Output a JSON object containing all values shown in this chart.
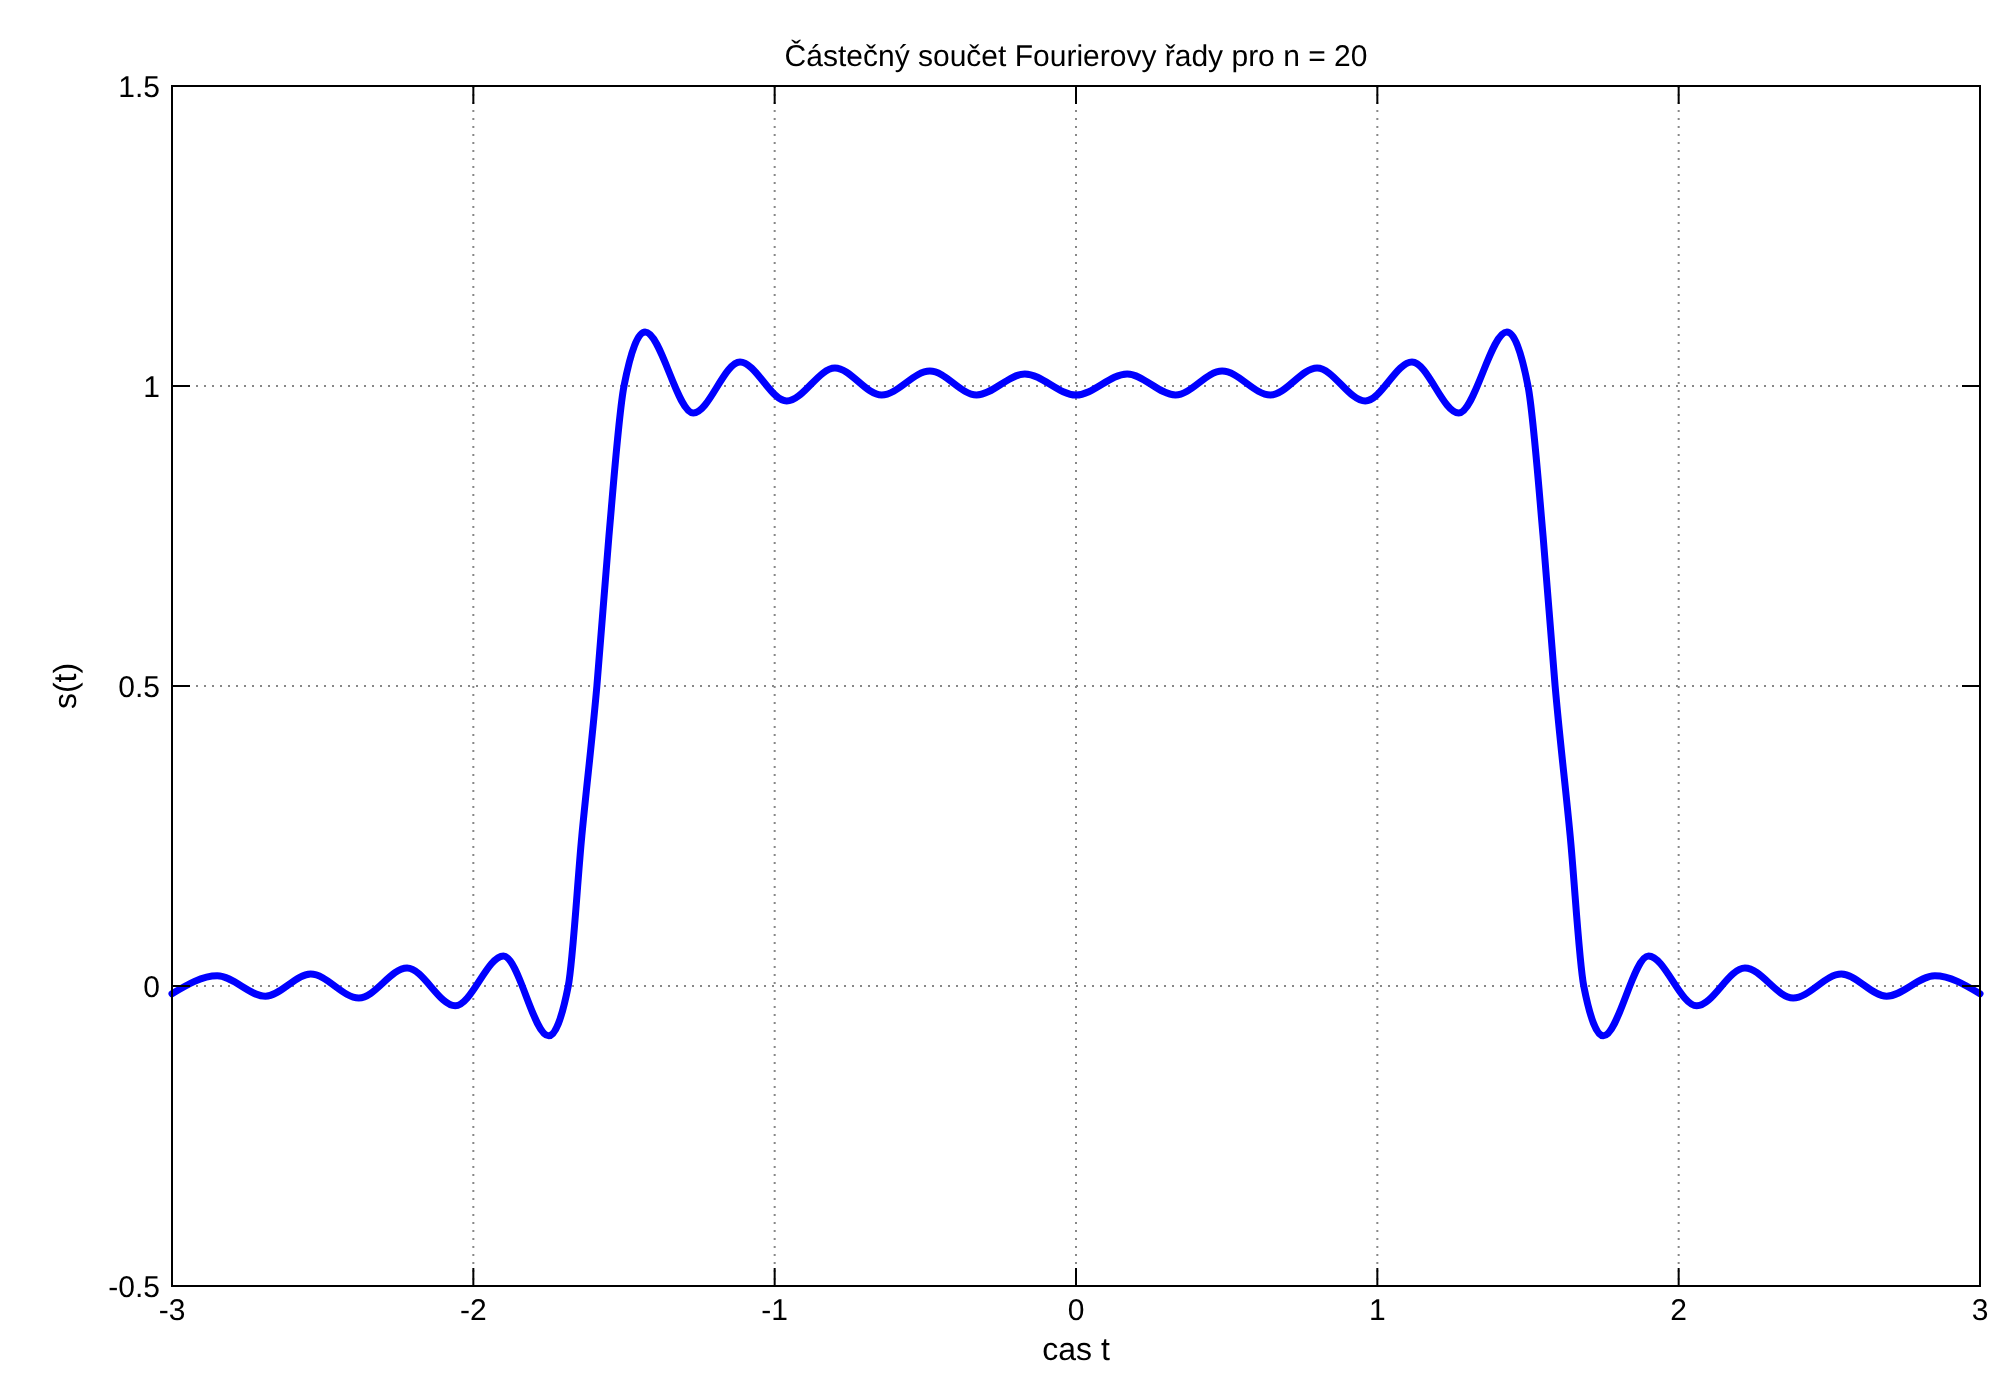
{
  "chart_data": {
    "type": "line",
    "title": "Částečný součet Fourierovy řady pro n = 20",
    "xlabel": "cas t",
    "ylabel": "s(t)",
    "x": [
      -3,
      -2.85,
      -2.69,
      -2.54,
      -2.38,
      -2.22,
      -2.06,
      -1.9,
      -1.75,
      -1.685,
      -1.64,
      -1.59,
      -1.55,
      -1.5,
      -1.43,
      -1.27,
      -1.115,
      -0.96,
      -0.8,
      -0.645,
      -0.485,
      -0.33,
      -0.17,
      0,
      0.17,
      0.33,
      0.485,
      0.645,
      0.8,
      0.96,
      1.115,
      1.27,
      1.43,
      1.5,
      1.55,
      1.59,
      1.64,
      1.685,
      1.75,
      1.9,
      2.06,
      2.22,
      2.38,
      2.54,
      2.69,
      2.85,
      3
    ],
    "series": [
      {
        "color": "#0000ff",
        "values": [
          -0.013,
          0.017,
          -0.017,
          0.02,
          -0.02,
          0.03,
          -0.033,
          0.05,
          -0.083,
          0,
          0.25,
          0.5,
          0.75,
          1,
          1.09,
          0.955,
          1.04,
          0.975,
          1.03,
          0.985,
          1.025,
          0.985,
          1.02,
          0.985,
          1.02,
          0.985,
          1.025,
          0.985,
          1.03,
          0.975,
          1.04,
          0.955,
          1.09,
          1,
          0.75,
          0.5,
          0.25,
          0,
          -0.083,
          0.05,
          -0.033,
          0.03,
          -0.02,
          0.02,
          -0.017,
          0.017,
          -0.013
        ]
      }
    ],
    "xlim": [
      -3,
      3
    ],
    "ylim": [
      -0.5,
      1.5
    ],
    "xticks": [
      -3,
      -2,
      -1,
      0,
      1,
      2,
      3
    ],
    "yticks": [
      -0.5,
      0,
      0.5,
      1,
      1.5
    ],
    "grid": true,
    "marker": "none",
    "line_style": "solid"
  }
}
